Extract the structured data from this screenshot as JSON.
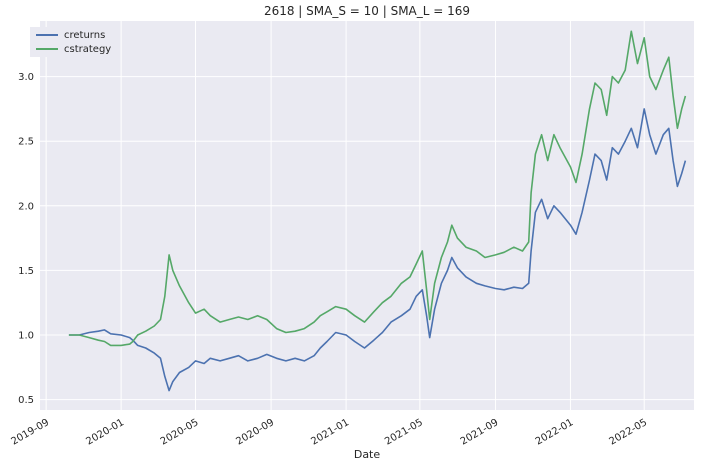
{
  "chart_data": {
    "type": "line",
    "title": "2618 | SMA_S = 10 | SMA_L = 169",
    "xlabel": "Date",
    "ylabel": "",
    "style": "seaborn-darkgrid",
    "grid": true,
    "legend_position": "top-left",
    "background_color": "#EAEAF2",
    "grid_color": "#FFFFFF",
    "xlim": [
      "2019-08-22",
      "2022-07-21"
    ],
    "ylim": [
      0.42,
      3.43
    ],
    "xticks": [
      "2019-09",
      "2020-01",
      "2020-05",
      "2020-09",
      "2021-01",
      "2021-05",
      "2021-09",
      "2022-01",
      "2022-05"
    ],
    "yticks": [
      0.5,
      1.0,
      1.5,
      2.0,
      2.5,
      3.0
    ],
    "series": [
      {
        "name": "creturns",
        "color": "#4C72B0",
        "points": [
          [
            "2019-10-08",
            1.0
          ],
          [
            "2019-10-25",
            1.0
          ],
          [
            "2019-11-10",
            1.02
          ],
          [
            "2019-11-25",
            1.03
          ],
          [
            "2019-12-05",
            1.04
          ],
          [
            "2019-12-15",
            1.01
          ],
          [
            "2020-01-01",
            1.0
          ],
          [
            "2020-01-15",
            0.98
          ],
          [
            "2020-01-20",
            0.96
          ],
          [
            "2020-01-28",
            0.92
          ],
          [
            "2020-02-10",
            0.9
          ],
          [
            "2020-02-24",
            0.86
          ],
          [
            "2020-03-05",
            0.82
          ],
          [
            "2020-03-12",
            0.68
          ],
          [
            "2020-03-19",
            0.57
          ],
          [
            "2020-03-25",
            0.64
          ],
          [
            "2020-04-05",
            0.71
          ],
          [
            "2020-04-20",
            0.75
          ],
          [
            "2020-05-01",
            0.8
          ],
          [
            "2020-05-15",
            0.78
          ],
          [
            "2020-05-25",
            0.82
          ],
          [
            "2020-06-10",
            0.8
          ],
          [
            "2020-06-25",
            0.82
          ],
          [
            "2020-07-10",
            0.84
          ],
          [
            "2020-07-25",
            0.8
          ],
          [
            "2020-08-10",
            0.82
          ],
          [
            "2020-08-25",
            0.85
          ],
          [
            "2020-09-10",
            0.82
          ],
          [
            "2020-09-25",
            0.8
          ],
          [
            "2020-10-10",
            0.82
          ],
          [
            "2020-10-25",
            0.8
          ],
          [
            "2020-11-10",
            0.84
          ],
          [
            "2020-11-20",
            0.9
          ],
          [
            "2020-12-01",
            0.95
          ],
          [
            "2020-12-15",
            1.02
          ],
          [
            "2021-01-01",
            1.0
          ],
          [
            "2021-01-15",
            0.95
          ],
          [
            "2021-01-31",
            0.9
          ],
          [
            "2021-02-15",
            0.96
          ],
          [
            "2021-03-01",
            1.02
          ],
          [
            "2021-03-15",
            1.1
          ],
          [
            "2021-04-01",
            1.15
          ],
          [
            "2021-04-15",
            1.2
          ],
          [
            "2021-04-25",
            1.3
          ],
          [
            "2021-05-05",
            1.35
          ],
          [
            "2021-05-12",
            1.15
          ],
          [
            "2021-05-17",
            0.98
          ],
          [
            "2021-05-25",
            1.2
          ],
          [
            "2021-06-05",
            1.4
          ],
          [
            "2021-06-15",
            1.5
          ],
          [
            "2021-06-22",
            1.6
          ],
          [
            "2021-07-01",
            1.52
          ],
          [
            "2021-07-15",
            1.45
          ],
          [
            "2021-08-01",
            1.4
          ],
          [
            "2021-08-15",
            1.38
          ],
          [
            "2021-09-01",
            1.36
          ],
          [
            "2021-09-15",
            1.35
          ],
          [
            "2021-10-01",
            1.37
          ],
          [
            "2021-10-15",
            1.36
          ],
          [
            "2021-10-25",
            1.4
          ],
          [
            "2021-10-29",
            1.65
          ],
          [
            "2021-11-05",
            1.95
          ],
          [
            "2021-11-15",
            2.05
          ],
          [
            "2021-11-25",
            1.9
          ],
          [
            "2021-12-05",
            2.0
          ],
          [
            "2021-12-15",
            1.95
          ],
          [
            "2022-01-01",
            1.85
          ],
          [
            "2022-01-10",
            1.78
          ],
          [
            "2022-01-20",
            1.95
          ],
          [
            "2022-02-01",
            2.2
          ],
          [
            "2022-02-10",
            2.4
          ],
          [
            "2022-02-20",
            2.35
          ],
          [
            "2022-03-01",
            2.2
          ],
          [
            "2022-03-10",
            2.45
          ],
          [
            "2022-03-20",
            2.4
          ],
          [
            "2022-03-31",
            2.5
          ],
          [
            "2022-04-10",
            2.6
          ],
          [
            "2022-04-20",
            2.45
          ],
          [
            "2022-05-01",
            2.75
          ],
          [
            "2022-05-10",
            2.55
          ],
          [
            "2022-05-20",
            2.4
          ],
          [
            "2022-06-01",
            2.55
          ],
          [
            "2022-06-10",
            2.6
          ],
          [
            "2022-06-17",
            2.35
          ],
          [
            "2022-06-24",
            2.15
          ],
          [
            "2022-07-01",
            2.25
          ],
          [
            "2022-07-07",
            2.35
          ]
        ]
      },
      {
        "name": "cstrategy",
        "color": "#55A868",
        "points": [
          [
            "2019-10-08",
            1.0
          ],
          [
            "2019-10-25",
            1.0
          ],
          [
            "2019-11-10",
            0.98
          ],
          [
            "2019-11-25",
            0.96
          ],
          [
            "2019-12-05",
            0.95
          ],
          [
            "2019-12-15",
            0.92
          ],
          [
            "2020-01-01",
            0.92
          ],
          [
            "2020-01-15",
            0.93
          ],
          [
            "2020-01-20",
            0.95
          ],
          [
            "2020-01-28",
            1.0
          ],
          [
            "2020-02-10",
            1.03
          ],
          [
            "2020-02-24",
            1.07
          ],
          [
            "2020-03-05",
            1.12
          ],
          [
            "2020-03-12",
            1.3
          ],
          [
            "2020-03-19",
            1.62
          ],
          [
            "2020-03-25",
            1.5
          ],
          [
            "2020-04-05",
            1.38
          ],
          [
            "2020-04-20",
            1.25
          ],
          [
            "2020-05-01",
            1.17
          ],
          [
            "2020-05-15",
            1.2
          ],
          [
            "2020-05-25",
            1.15
          ],
          [
            "2020-06-10",
            1.1
          ],
          [
            "2020-06-25",
            1.12
          ],
          [
            "2020-07-10",
            1.14
          ],
          [
            "2020-07-25",
            1.12
          ],
          [
            "2020-08-10",
            1.15
          ],
          [
            "2020-08-25",
            1.12
          ],
          [
            "2020-09-10",
            1.05
          ],
          [
            "2020-09-25",
            1.02
          ],
          [
            "2020-10-10",
            1.03
          ],
          [
            "2020-10-25",
            1.05
          ],
          [
            "2020-11-10",
            1.1
          ],
          [
            "2020-11-20",
            1.15
          ],
          [
            "2020-12-01",
            1.18
          ],
          [
            "2020-12-15",
            1.22
          ],
          [
            "2021-01-01",
            1.2
          ],
          [
            "2021-01-15",
            1.15
          ],
          [
            "2021-01-31",
            1.1
          ],
          [
            "2021-02-15",
            1.18
          ],
          [
            "2021-03-01",
            1.25
          ],
          [
            "2021-03-15",
            1.3
          ],
          [
            "2021-04-01",
            1.4
          ],
          [
            "2021-04-15",
            1.45
          ],
          [
            "2021-04-25",
            1.55
          ],
          [
            "2021-05-05",
            1.65
          ],
          [
            "2021-05-12",
            1.35
          ],
          [
            "2021-05-17",
            1.12
          ],
          [
            "2021-05-25",
            1.4
          ],
          [
            "2021-06-05",
            1.6
          ],
          [
            "2021-06-15",
            1.72
          ],
          [
            "2021-06-22",
            1.85
          ],
          [
            "2021-07-01",
            1.75
          ],
          [
            "2021-07-15",
            1.68
          ],
          [
            "2021-08-01",
            1.65
          ],
          [
            "2021-08-15",
            1.6
          ],
          [
            "2021-09-01",
            1.62
          ],
          [
            "2021-09-15",
            1.64
          ],
          [
            "2021-10-01",
            1.68
          ],
          [
            "2021-10-15",
            1.65
          ],
          [
            "2021-10-25",
            1.72
          ],
          [
            "2021-10-29",
            2.1
          ],
          [
            "2021-11-05",
            2.4
          ],
          [
            "2021-11-15",
            2.55
          ],
          [
            "2021-11-25",
            2.35
          ],
          [
            "2021-12-05",
            2.55
          ],
          [
            "2021-12-15",
            2.45
          ],
          [
            "2022-01-01",
            2.3
          ],
          [
            "2022-01-10",
            2.18
          ],
          [
            "2022-01-20",
            2.4
          ],
          [
            "2022-02-01",
            2.75
          ],
          [
            "2022-02-10",
            2.95
          ],
          [
            "2022-02-20",
            2.9
          ],
          [
            "2022-03-01",
            2.7
          ],
          [
            "2022-03-10",
            3.0
          ],
          [
            "2022-03-20",
            2.95
          ],
          [
            "2022-03-31",
            3.05
          ],
          [
            "2022-04-10",
            3.35
          ],
          [
            "2022-04-20",
            3.1
          ],
          [
            "2022-05-01",
            3.3
          ],
          [
            "2022-05-10",
            3.0
          ],
          [
            "2022-05-20",
            2.9
          ],
          [
            "2022-06-01",
            3.05
          ],
          [
            "2022-06-10",
            3.15
          ],
          [
            "2022-06-17",
            2.85
          ],
          [
            "2022-06-24",
            2.6
          ],
          [
            "2022-07-01",
            2.75
          ],
          [
            "2022-07-07",
            2.85
          ]
        ]
      }
    ]
  }
}
